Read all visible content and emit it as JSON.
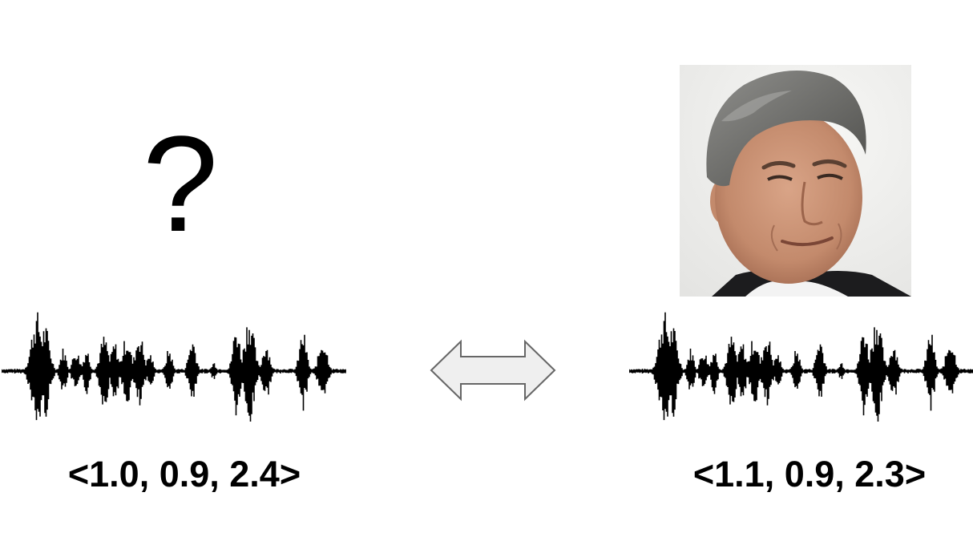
{
  "left": {
    "placeholder_symbol": "?",
    "embedding": "<1.0, 0.9, 2.4>"
  },
  "right": {
    "embedding": "<1.1, 0.9, 2.3>",
    "portrait": "face-photo"
  },
  "connector": "double-headed-arrow",
  "colors": {
    "text": "#000000",
    "waveform": "#000000",
    "arrow_fill": "#efefef",
    "arrow_stroke": "#666666"
  }
}
